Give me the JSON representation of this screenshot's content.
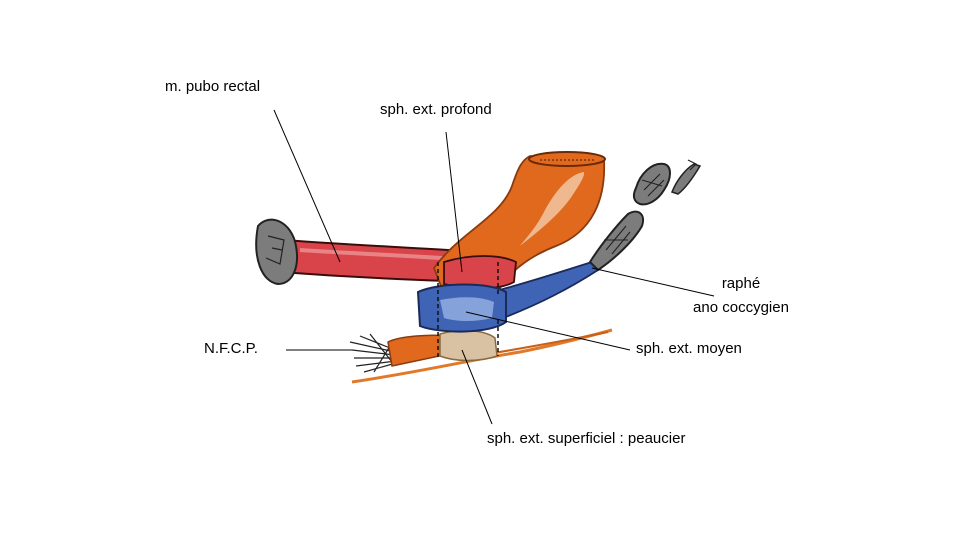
{
  "labels": {
    "pubo_rectal": "m. pubo rectal",
    "ext_profond": "sph. ext. profond",
    "raphe_line1": "raphé",
    "raphe_line2": "ano coccygien",
    "nfcp": "N.F.C.P.",
    "ext_moyen": "sph. ext. moyen",
    "ext_superficiel": "sph. ext. superficiel : peaucier"
  },
  "colors": {
    "pubo_rectal": "#d9444a",
    "rectum_orange": "#e0691e",
    "rectum_highlight": "#f2c7a3",
    "ext_moyen_blue": "#3f64b6",
    "ext_moyen_light": "#9fb7e6",
    "bone_gray": "#7c7c7c",
    "superficiel_beige": "#d9c2a4",
    "skin_line": "#e07a2a"
  }
}
